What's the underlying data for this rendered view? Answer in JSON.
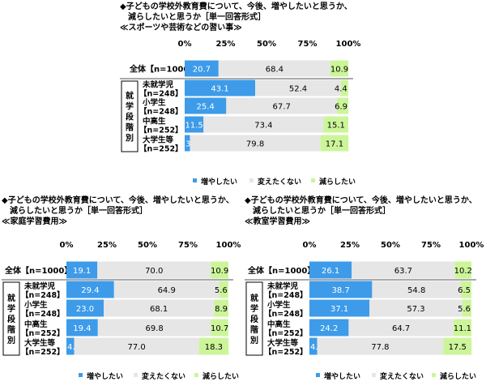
{
  "colors": {
    "increase": "#3d9be9",
    "unchanged": "#e6e6e6",
    "decrease": "#ccf59a"
  },
  "chart_data": [
    {
      "type": "bar",
      "title_lines": [
        "◆子どもの学校外教育費について、今後、増やしたいと思うか、",
        "減らしたいと思うか［単一回答形式］"
      ],
      "subtitle": "≪スポーツや芸術などの習い事≫",
      "xticks": [
        "0%",
        "25%",
        "50%",
        "75%",
        "100%"
      ],
      "group_label": "就学段階別",
      "categories": [
        "全体【n=1000】",
        "未就学児【n=248】",
        "小学生【n=248】",
        "中高生【n=252】",
        "大学生等【n=252】"
      ],
      "series": [
        {
          "name": "増やしたい",
          "values": [
            20.7,
            43.1,
            25.4,
            11.5,
            3.2
          ]
        },
        {
          "name": "変えたくない",
          "values": [
            68.4,
            52.4,
            67.7,
            73.4,
            79.8
          ]
        },
        {
          "name": "減らしたい",
          "values": [
            10.9,
            4.4,
            6.9,
            15.1,
            17.1
          ]
        }
      ],
      "xlim": [
        0,
        100
      ]
    },
    {
      "type": "bar",
      "title_lines": [
        "◆子どもの学校外教育費について、今後、増やしたいと思うか、",
        "減らしたいと思うか［単一回答形式］"
      ],
      "subtitle": "≪家庭学習費用≫",
      "xticks": [
        "0%",
        "25%",
        "50%",
        "75%",
        "100%"
      ],
      "group_label": "就学段階別",
      "categories": [
        "全体【n=1000】",
        "未就学児【n=248】",
        "小学生【n=248】",
        "中高生【n=252】",
        "大学生等【n=252】"
      ],
      "series": [
        {
          "name": "増やしたい",
          "values": [
            19.1,
            29.4,
            23.0,
            19.4,
            4.8
          ]
        },
        {
          "name": "変えたくない",
          "values": [
            70.0,
            64.9,
            68.1,
            69.8,
            77.0
          ]
        },
        {
          "name": "減らしたい",
          "values": [
            10.9,
            5.6,
            8.9,
            10.7,
            18.3
          ]
        }
      ],
      "xlim": [
        0,
        100
      ]
    },
    {
      "type": "bar",
      "title_lines": [
        "◆子どもの学校外教育費について、今後、増やしたいと思うか、",
        "減らしたいと思うか［単一回答形式］"
      ],
      "subtitle": "≪教室学習費用≫",
      "xticks": [
        "0%",
        "25%",
        "50%",
        "75%",
        "100%"
      ],
      "group_label": "就学段階別",
      "categories": [
        "全体【n=1000】",
        "未就学児【n=248】",
        "小学生【n=248】",
        "中高生【n=252】",
        "大学生等【n=252】"
      ],
      "series": [
        {
          "name": "増やしたい",
          "values": [
            26.1,
            38.7,
            37.1,
            24.2,
            4.8
          ]
        },
        {
          "name": "変えたくない",
          "values": [
            63.7,
            54.8,
            57.3,
            64.7,
            77.8
          ]
        },
        {
          "name": "減らしたい",
          "values": [
            10.2,
            6.5,
            5.6,
            11.1,
            17.5
          ]
        }
      ],
      "xlim": [
        0,
        100
      ]
    }
  ]
}
